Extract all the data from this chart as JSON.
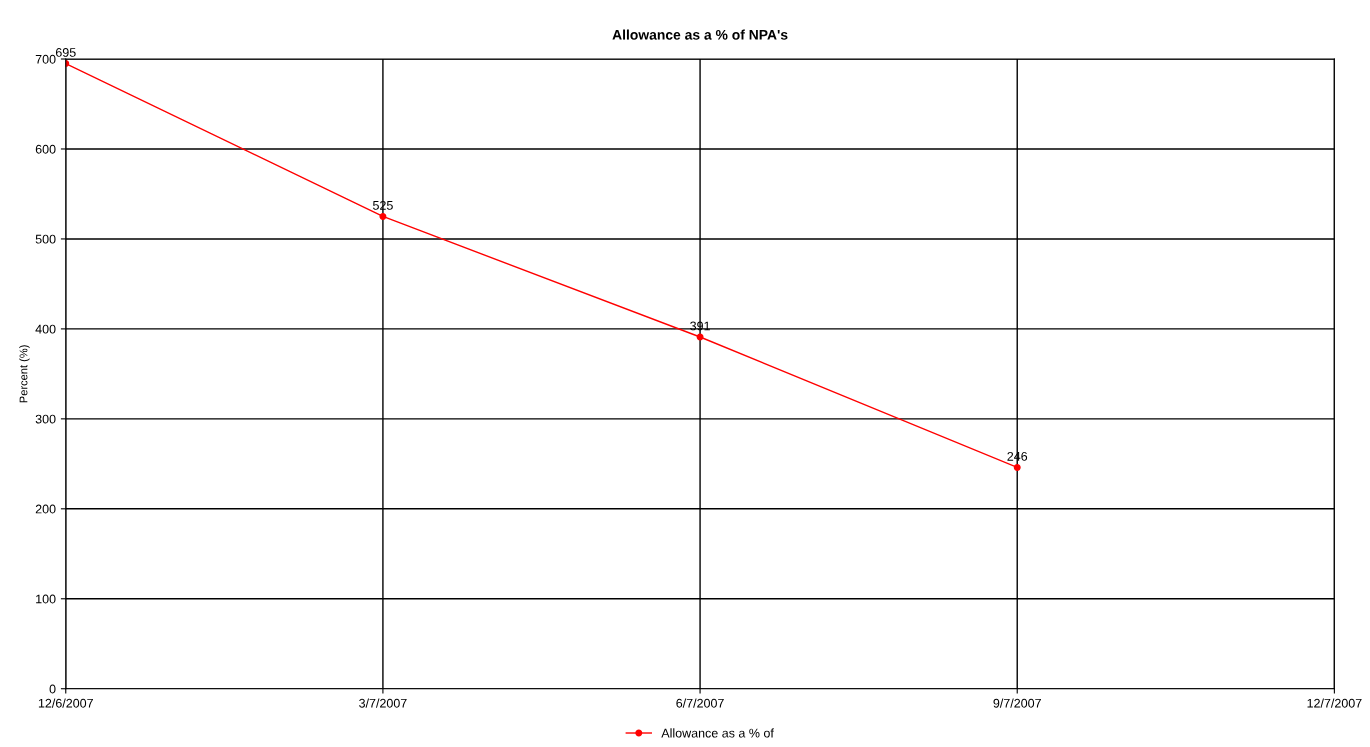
{
  "chart_data": {
    "type": "line",
    "title": "Allowance as a % of NPA's",
    "ylabel": "Percent (%)",
    "categories": [
      "12/6/2007",
      "3/7/2007",
      "6/7/2007",
      "9/7/2007",
      "12/7/2007"
    ],
    "series": [
      {
        "name": "Allowance as a % of",
        "color": "#ff0000",
        "values": [
          695,
          525,
          391,
          246,
          null
        ]
      }
    ],
    "ylim": [
      0,
      700
    ],
    "yticks": [
      0,
      100,
      200,
      300,
      400,
      500,
      600,
      700
    ],
    "grid": true,
    "legend": "bottom",
    "marker": "circle",
    "line_style": "solid",
    "data_labels": true
  }
}
